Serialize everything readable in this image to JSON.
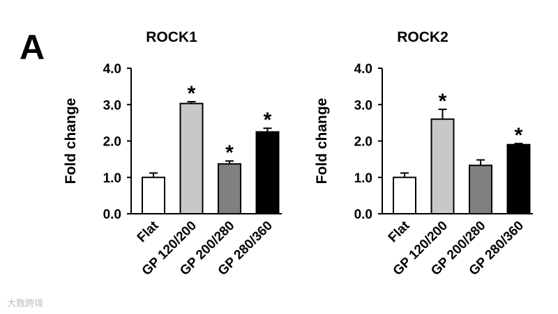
{
  "panel_label": "A",
  "watermark": "大数跨境",
  "chart_data": [
    {
      "type": "bar",
      "title": "ROCK1",
      "ylabel": "Fold change",
      "categories": [
        "Flat",
        "GP 120/200",
        "GP 200/280",
        "GP 280/360"
      ],
      "values": [
        1.0,
        3.03,
        1.37,
        2.25
      ],
      "errors": [
        0.12,
        0.05,
        0.08,
        0.1
      ],
      "significance": [
        null,
        "*",
        "*",
        "*"
      ],
      "colors": [
        "#ffffff",
        "#c8c8c8",
        "#808080",
        "#000000"
      ],
      "ylim": [
        0,
        4
      ],
      "yticks": [
        {
          "value": 0,
          "label": "0.0"
        },
        {
          "value": 1,
          "label": "1.0"
        },
        {
          "value": 2,
          "label": "2.0"
        },
        {
          "value": 3,
          "label": "3.0"
        },
        {
          "value": 4,
          "label": "4.0"
        }
      ]
    },
    {
      "type": "bar",
      "title": "ROCK2",
      "ylabel": "Fold change",
      "categories": [
        "Flat",
        "GP 120/200",
        "GP 200/280",
        "GP 280/360"
      ],
      "values": [
        1.0,
        2.6,
        1.33,
        1.9
      ],
      "errors": [
        0.12,
        0.27,
        0.15,
        0.03
      ],
      "significance": [
        null,
        "*",
        null,
        "*"
      ],
      "colors": [
        "#ffffff",
        "#c8c8c8",
        "#808080",
        "#000000"
      ],
      "ylim": [
        0,
        4
      ],
      "yticks": [
        {
          "value": 0,
          "label": "0.0"
        },
        {
          "value": 1,
          "label": "1.0"
        },
        {
          "value": 2,
          "label": "2.0"
        },
        {
          "value": 3,
          "label": "3.0"
        },
        {
          "value": 4,
          "label": "4.0"
        }
      ]
    }
  ]
}
